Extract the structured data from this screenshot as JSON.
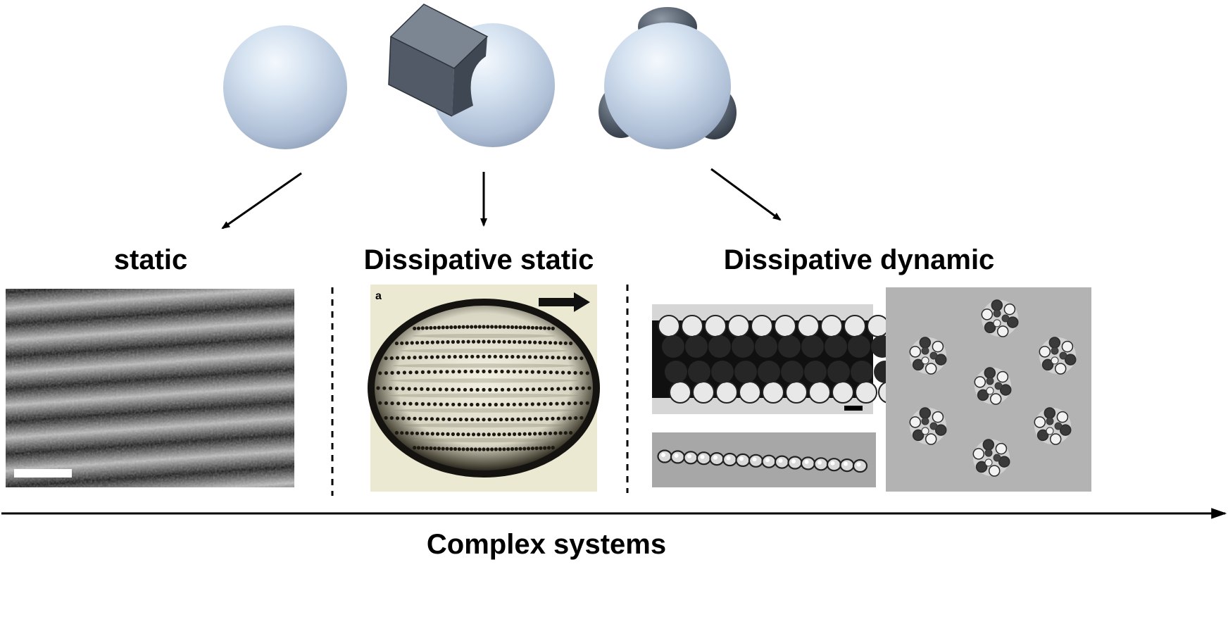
{
  "labels": {
    "static": "static",
    "dissipative_static": "Dissipative static",
    "dissipative_dynamic": "Dissipative dynamic",
    "complex_systems": "Complex systems"
  },
  "panel_letter": "a",
  "colors": {
    "sphere": "#c6d7ea",
    "patch": "#4e5764",
    "arrow": "#000000",
    "background": "#ffffff"
  }
}
